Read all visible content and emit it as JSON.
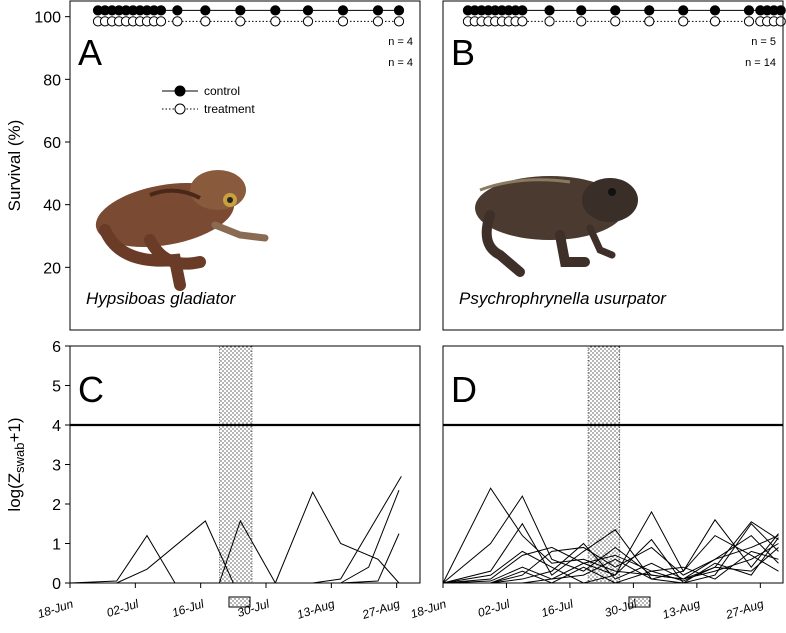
{
  "chart_data": [
    {
      "type": "line",
      "label": "A",
      "ylabel": "Survival (%)",
      "species": "Hypsiboas gladiator",
      "n_labels": [
        "n = 4",
        "n = 4"
      ],
      "xlim": [
        0,
        75
      ],
      "ylim": [
        0,
        105
      ],
      "yticks": [
        20,
        40,
        60,
        80,
        100
      ],
      "series": [
        {
          "name": "control",
          "color": "#000000",
          "marker_fill": "#000000",
          "dash": "solid",
          "x": [
            6,
            7.5,
            9,
            10.5,
            12,
            13.5,
            15,
            16.5,
            18,
            19.5,
            23,
            29,
            36.5,
            44,
            51,
            58.5,
            66,
            70.5
          ],
          "values": [
            102,
            102,
            102,
            102,
            102,
            102,
            102,
            102,
            102,
            102,
            102,
            102,
            102,
            102,
            102,
            102,
            102,
            102
          ]
        },
        {
          "name": "treatment",
          "color": "#000000",
          "marker_fill": "#ffffff",
          "dash": "dotted",
          "x": [
            6,
            7.5,
            9,
            10.5,
            12,
            13.5,
            15,
            16.5,
            18,
            19.5,
            23,
            29,
            36.5,
            44,
            51,
            58.5,
            66,
            70.5
          ],
          "values": [
            98.5,
            98.5,
            98.5,
            98.5,
            98.5,
            98.5,
            98.5,
            98.5,
            98.5,
            98.5,
            98.5,
            98.5,
            98.5,
            98.5,
            98.5,
            98.5,
            98.5,
            98.5
          ]
        }
      ]
    },
    {
      "type": "line",
      "label": "B",
      "species": "Psychrophrynella usurpator",
      "n_labels": [
        "n = 5",
        "n = 14"
      ],
      "xlim": [
        0,
        75
      ],
      "ylim": [
        0,
        105
      ],
      "series": [
        {
          "color": "#000000",
          "marker_fill": "#000000",
          "dash": "solid",
          "x": [
            5.5,
            7,
            8.5,
            10,
            11.5,
            13,
            14.5,
            16,
            17.5,
            23.5,
            30.5,
            38,
            45.5,
            53,
            60,
            67.5,
            70,
            71.5,
            73,
            74.5
          ],
          "values": [
            102,
            102,
            102,
            102,
            102,
            102,
            102,
            102,
            102,
            102,
            102,
            102,
            102,
            102,
            102,
            102,
            102,
            102,
            102,
            102
          ]
        },
        {
          "color": "#000000",
          "marker_fill": "#ffffff",
          "dash": "dotted",
          "x": [
            5.5,
            7,
            8.5,
            10,
            11.5,
            13,
            14.5,
            16,
            17.5,
            23.5,
            30.5,
            38,
            45.5,
            53,
            60,
            67.5,
            70,
            71.5,
            73,
            74.5
          ],
          "values": [
            98.5,
            98.5,
            98.5,
            98.5,
            98.5,
            98.5,
            98.5,
            98.5,
            98.5,
            98.5,
            98.5,
            98.5,
            98.5,
            98.5,
            98.5,
            98.5,
            98.5,
            98.5,
            98.5,
            98.5
          ]
        }
      ]
    },
    {
      "type": "line",
      "label": "C",
      "ylabel": {
        "base": "log(Z",
        "sub": "swab",
        "tail": "+1)"
      },
      "xlim": [
        0,
        75
      ],
      "ylim": [
        0,
        6
      ],
      "yticks": [
        0,
        1,
        2,
        3,
        4,
        5,
        6
      ],
      "xticks": [
        {
          "value": 0,
          "label": "18-Jun"
        },
        {
          "value": 14,
          "label": "02-Jul"
        },
        {
          "value": 28,
          "label": "16-Jul"
        },
        {
          "value": 42,
          "label": "30-Jul"
        },
        {
          "value": 56,
          "label": "13-Aug"
        },
        {
          "value": 70,
          "label": "27-Aug"
        }
      ],
      "threshold": 4,
      "shade": [
        32,
        39
      ],
      "series": [
        {
          "color": "#000000",
          "x": [
            0,
            10,
            16.5,
            22.5
          ],
          "values": [
            0,
            0.05,
            1.2,
            0
          ]
        },
        {
          "color": "#000000",
          "x": [
            10,
            16.5,
            29,
            35
          ],
          "values": [
            0,
            0.35,
            1.57,
            0
          ]
        },
        {
          "color": "#000000",
          "x": [
            32,
            36.5,
            44
          ],
          "values": [
            0,
            1.57,
            0
          ]
        },
        {
          "color": "#000000",
          "x": [
            44,
            52,
            58,
            66,
            70.5
          ],
          "values": [
            0,
            2.3,
            1.0,
            0.6,
            0
          ]
        },
        {
          "color": "#000000",
          "x": [
            52,
            58,
            66,
            71
          ],
          "values": [
            0,
            0.1,
            1.7,
            2.7
          ]
        },
        {
          "color": "#000000",
          "x": [
            58,
            64,
            70.5
          ],
          "values": [
            0,
            0.4,
            2.35
          ]
        },
        {
          "color": "#000000",
          "x": [
            58,
            66,
            70.5
          ],
          "values": [
            0,
            0.05,
            1.25
          ]
        }
      ]
    },
    {
      "type": "line",
      "label": "D",
      "xlim": [
        0,
        75
      ],
      "ylim": [
        0,
        6
      ],
      "xticks": [
        {
          "value": 0,
          "label": "18-Jun"
        },
        {
          "value": 14,
          "label": "02-Jul"
        },
        {
          "value": 28,
          "label": "16-Jul"
        },
        {
          "value": 42,
          "label": "30-Jul"
        },
        {
          "value": 56,
          "label": "13-Aug"
        },
        {
          "value": 70,
          "label": "27-Aug"
        }
      ],
      "threshold": 4,
      "shade": [
        32,
        39
      ],
      "x": [
        0,
        10.5,
        17.5,
        24,
        31,
        38,
        46,
        53,
        60,
        68,
        74
      ],
      "series": [
        {
          "color": "#000000",
          "values": [
            0,
            2.4,
            1.2,
            0.5,
            0.6,
            0.3,
            0.2,
            0.1,
            0.3,
            0.6,
            1.0
          ]
        },
        {
          "color": "#000000",
          "values": [
            0,
            1.0,
            2.2,
            0.6,
            0.3,
            0.9,
            0.2,
            0.1,
            0.4,
            0.3,
            0.9
          ]
        },
        {
          "color": "#000000",
          "values": [
            0,
            0.3,
            1.5,
            0.2,
            0.8,
            1.35,
            0.1,
            0.0,
            0.2,
            1.5,
            0.8
          ]
        },
        {
          "color": "#000000",
          "values": [
            0,
            0.1,
            0.7,
            0.9,
            0.5,
            0.2,
            1.8,
            0.3,
            1.6,
            0.4,
            1.25
          ]
        },
        {
          "color": "#000000",
          "values": [
            0,
            0.0,
            0.2,
            0.8,
            0.9,
            0.4,
            0.9,
            0.2,
            0.6,
            1.2,
            0.5
          ]
        },
        {
          "color": "#000000",
          "values": [
            0,
            0.05,
            0.4,
            0.1,
            0.5,
            0.7,
            0.3,
            0.05,
            0.4,
            1.55,
            1.1
          ]
        },
        {
          "color": "#000000",
          "values": [
            0,
            0.0,
            0.1,
            0.3,
            1.0,
            0.1,
            0.5,
            0.1,
            0.6,
            0.9,
            1.2
          ]
        },
        {
          "color": "#000000",
          "values": [
            0,
            0.0,
            0.0,
            0.1,
            0.2,
            0.6,
            0.1,
            0.3,
            1.2,
            0.7,
            0.3
          ]
        },
        {
          "color": "#000000",
          "values": [
            0,
            0.2,
            0.8,
            0.4,
            0.0,
            0.2,
            1.1,
            0.0,
            0.5,
            0.2,
            1.15
          ]
        },
        {
          "color": "#000000",
          "values": [
            0,
            0.0,
            0.3,
            0.0,
            0.4,
            0.0,
            0.3,
            0.4,
            0.1,
            0.8,
            0.6
          ]
        }
      ]
    }
  ]
}
